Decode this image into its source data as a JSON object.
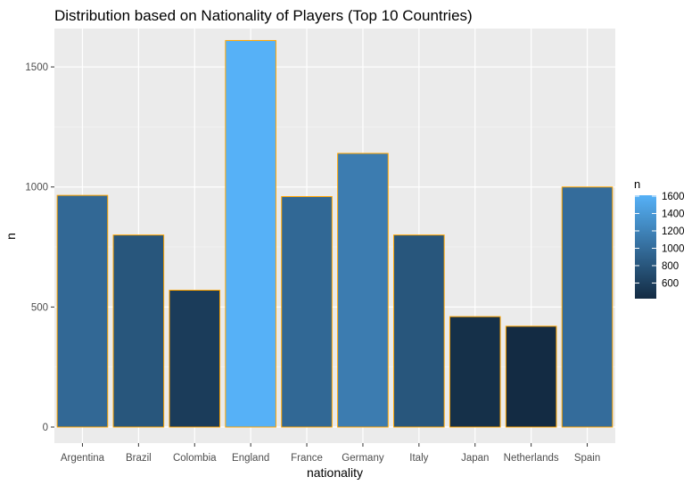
{
  "chart_data": {
    "type": "bar",
    "title": "Distribution based on Nationality of Players (Top 10 Countries)",
    "xlabel": "nationality",
    "ylabel": "n",
    "categories": [
      "Argentina",
      "Brazil",
      "Colombia",
      "England",
      "France",
      "Germany",
      "Italy",
      "Japan",
      "Netherlands",
      "Spain"
    ],
    "values": [
      965,
      800,
      570,
      1610,
      960,
      1140,
      800,
      460,
      420,
      1000
    ],
    "ylim": [
      0,
      1660
    ],
    "yticks": [
      0,
      500,
      1000,
      1500
    ],
    "grid": true,
    "bar_border_color": "#FFA500",
    "panel_background": "#EBEBEB",
    "fill_scale": {
      "low_color": "#132B43",
      "high_color": "#56B1F7",
      "min": 420,
      "max": 1610
    },
    "legend": {
      "title": "n",
      "position": "right",
      "labels": [
        "1600",
        "1400",
        "1200",
        "1000",
        "800",
        "600"
      ],
      "values": [
        1600,
        1400,
        1200,
        1000,
        800,
        600
      ]
    }
  }
}
